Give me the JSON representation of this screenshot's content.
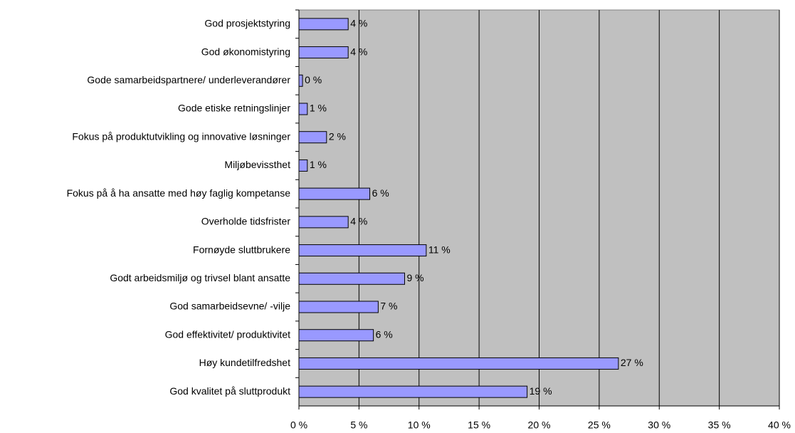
{
  "chart_data": {
    "type": "bar",
    "orientation": "horizontal",
    "categories": [
      "God prosjektstyring",
      "God økonomistyring",
      "Gode samarbeidspartnere/ underleverandører",
      "Gode etiske retningslinjer",
      "Fokus på produktutvikling og innovative løsninger",
      "Miljøbevissthet",
      "Fokus på å ha ansatte med høy faglig kompetanse",
      "Overholde tidsfrister",
      "Fornøyde sluttbrukere",
      "Godt arbeidsmiljø og trivsel blant ansatte",
      "God samarbeidsevne/ -vilje",
      "God effektivitet/ produktivitet",
      "Høy kundetilfredshet",
      "God kvalitet på sluttprodukt"
    ],
    "values": [
      4.1,
      4.1,
      0.3,
      0.7,
      2.3,
      0.7,
      5.9,
      4.1,
      10.6,
      8.8,
      6.6,
      6.2,
      26.6,
      19.0
    ],
    "value_labels": [
      "4 %",
      "4 %",
      "0 %",
      "1 %",
      "2 %",
      "1 %",
      "6 %",
      "4 %",
      "11 %",
      "9 %",
      "7 %",
      "6 %",
      "27 %",
      "19 %"
    ],
    "color": "#9999ff",
    "xlim": [
      0,
      40
    ],
    "xticks": [
      {
        "value": 0,
        "label": "0 %"
      },
      {
        "value": 5,
        "label": "5 %"
      },
      {
        "value": 10,
        "label": "10 %"
      },
      {
        "value": 15,
        "label": "15 %"
      },
      {
        "value": 20,
        "label": "20 %"
      },
      {
        "value": 25,
        "label": "25 %"
      },
      {
        "value": 30,
        "label": "30 %"
      },
      {
        "value": 35,
        "label": "35 %"
      },
      {
        "value": 40,
        "label": "40 %"
      }
    ],
    "grid": true
  }
}
